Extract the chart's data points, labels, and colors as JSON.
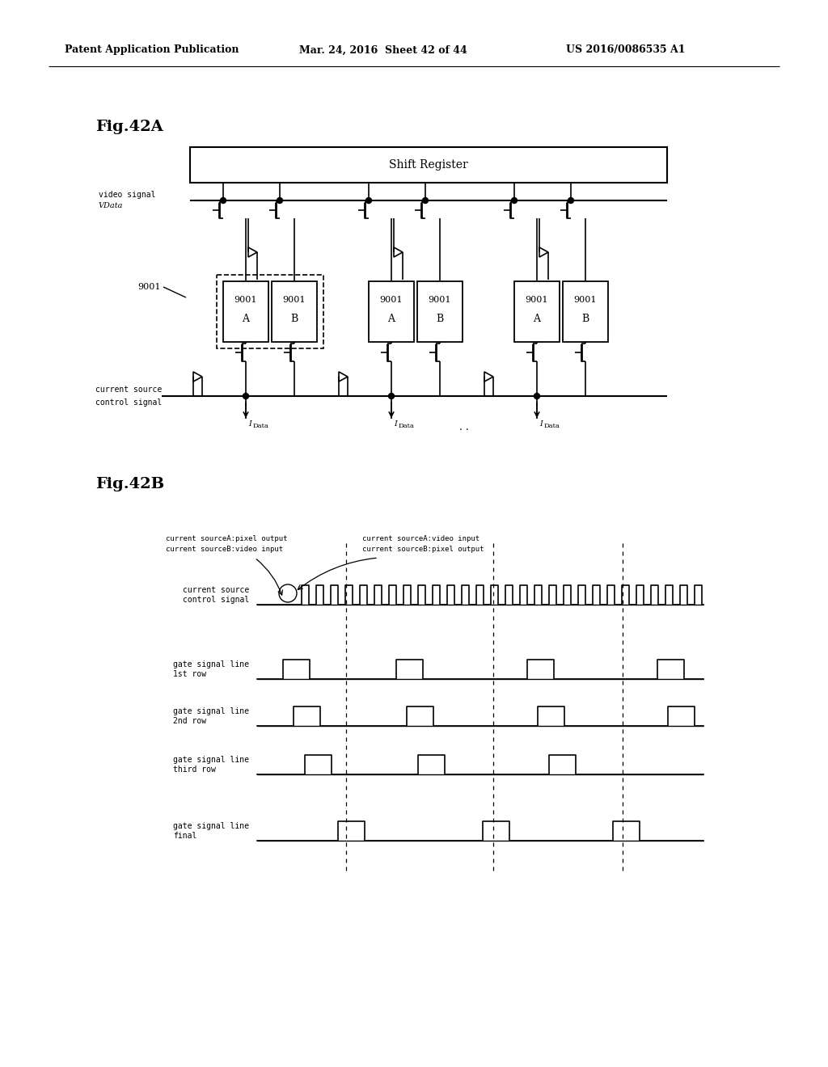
{
  "header_left": "Patent Application Publication",
  "header_mid": "Mar. 24, 2016  Sheet 42 of 44",
  "header_right": "US 2016/0086535 A1",
  "fig42a_label": "Fig.42A",
  "fig42b_label": "Fig.42B",
  "shift_register_label": "Shift Register",
  "bg_color": "#ffffff",
  "line_color": "#000000"
}
